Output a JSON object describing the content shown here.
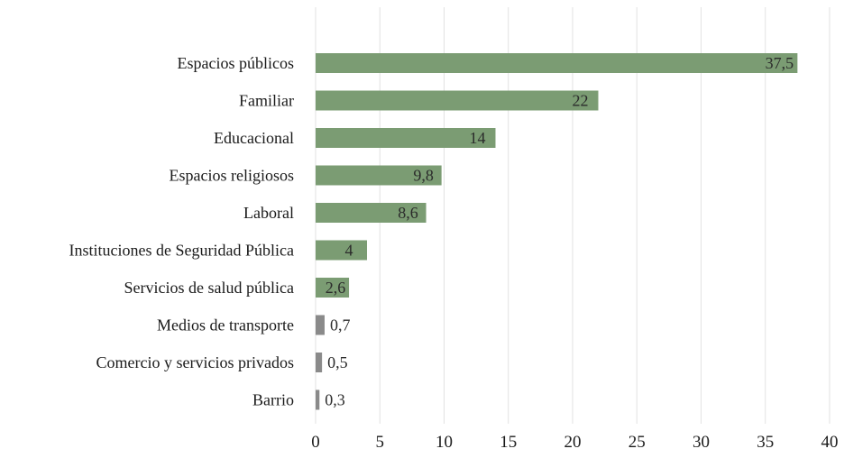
{
  "chart_data": {
    "type": "bar",
    "orientation": "horizontal",
    "categories": [
      "Espacios públicos",
      "Familiar",
      "Educacional",
      "Espacios religiosos",
      "Laboral",
      "Instituciones de Seguridad Pública",
      "Servicios de salud pública",
      "Medios de transporte",
      "Comercio y servicios privados",
      "Barrio"
    ],
    "values": [
      37.5,
      22,
      14,
      9.8,
      8.6,
      4,
      2.6,
      0.7,
      0.5,
      0.3
    ],
    "data_labels": [
      "37,5",
      "22",
      "14",
      "9,8",
      "8,6",
      "4",
      "2,6",
      "0,7",
      "0,5",
      "0,3"
    ],
    "xlim": [
      0,
      40
    ],
    "x_ticks": [
      "0",
      "5",
      "10",
      "15",
      "20",
      "25",
      "30",
      "35",
      "40"
    ],
    "grid": "vertical",
    "bar_color": "#7b9c73",
    "small_bar_color": "#8a8a8a",
    "gridline_color": "#e2e2e2",
    "text_color": "#1a1a1a",
    "title": "",
    "xlabel": "",
    "ylabel": ""
  }
}
